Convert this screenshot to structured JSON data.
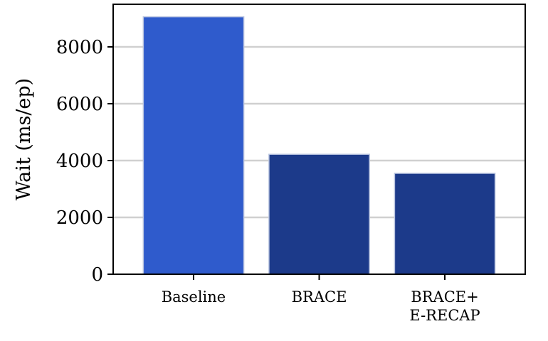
{
  "chart_data": {
    "type": "bar",
    "categories": [
      "Baseline",
      "BRACE",
      "BRACE+\nE-RECAP"
    ],
    "values": [
      9060,
      4220,
      3550
    ],
    "bar_colors": [
      "#2f5bcc",
      "#1c3a8a",
      "#1c3a8a"
    ],
    "xlabel": "",
    "ylabel": "Wait (ms/ep)",
    "ylim": [
      0,
      9500
    ],
    "yticks": [
      0,
      2000,
      4000,
      6000,
      8000
    ],
    "ytick_labels": [
      "0",
      "2000",
      "4000",
      "6000",
      "8000"
    ],
    "grid": "y",
    "grid_color": "#d0d0d0"
  }
}
